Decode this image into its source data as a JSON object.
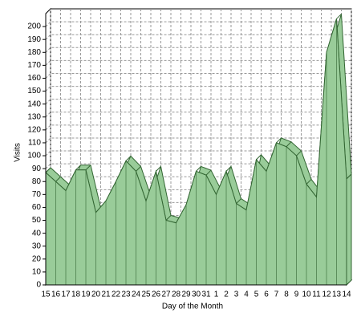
{
  "chart_data": {
    "type": "area3d",
    "x_label": "Day of the Month",
    "y_label": "Visits",
    "categories": [
      "15",
      "16",
      "17",
      "18",
      "19",
      "20",
      "21",
      "22",
      "23",
      "24",
      "25",
      "26",
      "27",
      "28",
      "29",
      "30",
      "31",
      "1",
      "2",
      "3",
      "4",
      "5",
      "6",
      "7",
      "8",
      "9",
      "10",
      "11",
      "12",
      "13",
      "14"
    ],
    "values": [
      87,
      80,
      73,
      89,
      89,
      56,
      65,
      80,
      96,
      88,
      65,
      88,
      50,
      48,
      62,
      88,
      85,
      70,
      88,
      63,
      58,
      97,
      88,
      110,
      107,
      100,
      78,
      68,
      180,
      206,
      82
    ],
    "color": "#99cc99",
    "line_color": "#336633",
    "ylim": [
      0,
      210
    ],
    "yticks": [
      0,
      10,
      20,
      30,
      40,
      50,
      60,
      70,
      80,
      90,
      100,
      110,
      120,
      130,
      140,
      150,
      160,
      170,
      180,
      190,
      200
    ],
    "grid": true
  }
}
